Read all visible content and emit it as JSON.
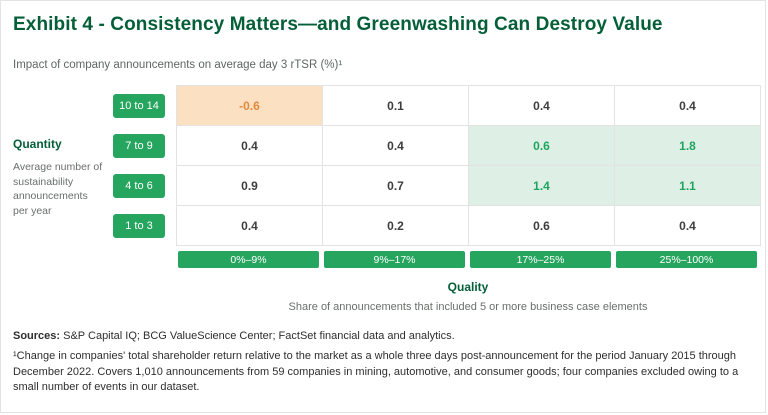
{
  "header": {
    "title": "Exhibit 4 - Consistency Matters—and Greenwashing Can Destroy Value",
    "subtitle": "Impact of company announcements on average day 3 rTSR (%)¹"
  },
  "chart_data": {
    "type": "heatmap",
    "title": "Impact of company announcements on average day 3 rTSR (%)",
    "row_axis": {
      "label": "Quantity",
      "description": "Average number of sustainability announcements per year",
      "categories": [
        "10 to 14",
        "7 to 9",
        "4 to 6",
        "1 to 3"
      ]
    },
    "col_axis": {
      "label": "Quality",
      "description": "Share of announcements that included 5 or more business case elements",
      "categories": [
        "0%–9%",
        "9%–17%",
        "17%–25%",
        "25%–100%"
      ]
    },
    "values": [
      [
        -0.6,
        0.1,
        0.4,
        0.4
      ],
      [
        0.4,
        0.4,
        0.6,
        1.8
      ],
      [
        0.9,
        0.7,
        1.4,
        1.1
      ],
      [
        0.4,
        0.2,
        0.6,
        0.4
      ]
    ],
    "highlights": {
      "negative_cells": [
        [
          0,
          0
        ]
      ],
      "positive_cells": [
        [
          1,
          2
        ],
        [
          1,
          3
        ],
        [
          2,
          2
        ],
        [
          2,
          3
        ]
      ]
    }
  },
  "footer": {
    "sources_label": "Sources:",
    "sources_text": " S&P Capital IQ; BCG ValueScience Center; FactSet financial data and analytics.",
    "footnote": "¹Change in companies' total shareholder return relative to the market as a whole three days post-announcement for the period January 2015 through December 2022. Covers 1,010 announcements from 59 companies in mining, automotive, and consumer goods; four companies excluded owing to a small number of events in our dataset."
  },
  "colors": {
    "title_green": "#045F38",
    "bar_green": "#26A55F",
    "highlight_green_bg": "#DEF0E5",
    "highlight_green_text": "#1FA45F",
    "highlight_orange_bg": "#FBE0C2",
    "highlight_orange_text": "#E08A3C"
  }
}
